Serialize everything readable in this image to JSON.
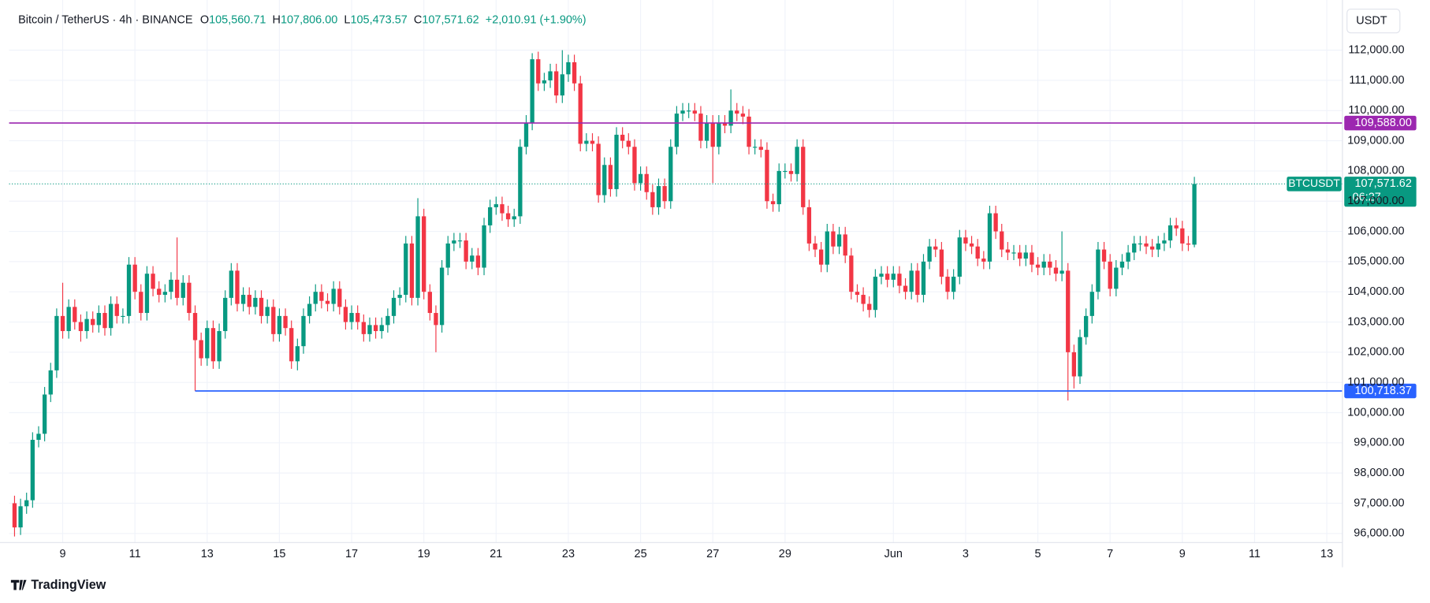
{
  "chart_data": {
    "type": "candlestick",
    "header": {
      "symbol": "Bitcoin / TetherUS · 4h · BINANCE",
      "ohlc": [
        {
          "key": "O",
          "value": "105,560.71"
        },
        {
          "key": "H",
          "value": "107,806.00"
        },
        {
          "key": "L",
          "value": "105,473.57"
        },
        {
          "key": "C",
          "value": "107,571.62"
        }
      ],
      "change": "+2,010.91 (+1.90%)"
    },
    "currency": "USDT",
    "brand": "TradingView",
    "up_color": "#089981",
    "down_color": "#f23645",
    "grid": true,
    "ylim": [
      95698,
      113419
    ],
    "xlim": [
      -0.9,
      220.6
    ],
    "yticks": [
      {
        "value": 96000,
        "label": "96,000.00"
      },
      {
        "value": 97000,
        "label": "97,000.00"
      },
      {
        "value": 98000,
        "label": "98,000.00"
      },
      {
        "value": 99000,
        "label": "99,000.00"
      },
      {
        "value": 100000,
        "label": "100,000.00"
      },
      {
        "value": 101000,
        "label": "101,000.00"
      },
      {
        "value": 102000,
        "label": "102,000.00"
      },
      {
        "value": 103000,
        "label": "103,000.00"
      },
      {
        "value": 104000,
        "label": "104,000.00"
      },
      {
        "value": 105000,
        "label": "105,000.00"
      },
      {
        "value": 106000,
        "label": "106,000.00"
      },
      {
        "value": 107000,
        "label": "107,000.00"
      },
      {
        "value": 108000,
        "label": "108,000.00"
      },
      {
        "value": 109000,
        "label": "109,000.00"
      },
      {
        "value": 110000,
        "label": "110,000.00"
      },
      {
        "value": 111000,
        "label": "111,000.00"
      },
      {
        "value": 112000,
        "label": "112,000.00"
      }
    ],
    "xticks": [
      {
        "value": 8,
        "label": "9"
      },
      {
        "value": 20,
        "label": "11"
      },
      {
        "value": 32,
        "label": "13"
      },
      {
        "value": 44,
        "label": "15"
      },
      {
        "value": 56,
        "label": "17"
      },
      {
        "value": 68,
        "label": "19"
      },
      {
        "value": 80,
        "label": "21"
      },
      {
        "value": 92,
        "label": "23"
      },
      {
        "value": 104,
        "label": "25"
      },
      {
        "value": 116,
        "label": "27"
      },
      {
        "value": 128,
        "label": "29"
      },
      {
        "value": 146,
        "label": "Jun"
      },
      {
        "value": 158,
        "label": "3"
      },
      {
        "value": 170,
        "label": "5"
      },
      {
        "value": 182,
        "label": "7"
      },
      {
        "value": 194,
        "label": "9"
      },
      {
        "value": 206,
        "label": "11"
      },
      {
        "value": 218,
        "label": "13"
      }
    ],
    "hlines": [
      {
        "value": 109588,
        "label": "109,588.00",
        "color": "#9c27b0",
        "start": null
      },
      {
        "value": 100718.37,
        "label": "100,718.37",
        "color": "#2962ff",
        "start": 30
      }
    ],
    "last_price": {
      "name": "BTCUSDT",
      "value": 107571.62,
      "label": "107,571.62",
      "countdown": "06:27"
    },
    "open": [
      97000,
      96200,
      96900,
      97100,
      99100,
      99300,
      100600,
      101400,
      103200,
      102700,
      103500,
      103000,
      102700,
      103100,
      102900,
      103300,
      102800,
      103600,
      103200,
      103200,
      104900,
      104000,
      103300,
      104600,
      104100,
      103900,
      104000,
      104400,
      103800,
      104300,
      103300,
      102400,
      101800,
      102800,
      101700,
      102700,
      103800,
      104700,
      103600,
      103900,
      103500,
      103800,
      103200,
      103500,
      102600,
      103200,
      102800,
      101700,
      102200,
      103200,
      103600,
      104000,
      103700,
      103600,
      104100,
      103500,
      103000,
      103300,
      103000,
      102600,
      102900,
      102700,
      102900,
      103200,
      103800,
      103900,
      105600,
      103800,
      106500,
      104000,
      103300,
      102900,
      104800,
      105600,
      105700,
      105700,
      105000,
      105200,
      104800,
      106200,
      106800,
      106900,
      106600,
      106400,
      106500,
      108800,
      109600,
      111700,
      110900,
      111000,
      111300,
      110500,
      111200,
      111600,
      110900,
      108900,
      109000,
      108900,
      107200,
      108200,
      107400,
      109200,
      109000,
      108800,
      107600,
      107900,
      107300,
      106800,
      107500,
      107000,
      108800,
      109900,
      110000,
      110000,
      109900,
      109000,
      109600,
      108800,
      109600,
      109500,
      110000,
      109900,
      109800,
      108800,
      108800,
      108700,
      107000,
      106900,
      108000,
      108000,
      107900,
      108800,
      106800,
      105600,
      105400,
      104900,
      106000,
      105500,
      105900,
      105200,
      104000,
      103900,
      103600,
      103400,
      104500,
      104600,
      104400,
      104600,
      104200,
      104000,
      104700,
      103900,
      105000,
      105500,
      105400,
      104500,
      104000,
      104500,
      105800,
      105600,
      105500,
      105100,
      105000,
      106600,
      106000,
      105400,
      105300,
      105300,
      105100,
      105300,
      104900,
      104800,
      105000,
      104800,
      104600,
      104700,
      102000,
      101200,
      102500,
      103200,
      104000,
      105400,
      105000,
      104100,
      104800,
      105000,
      105300,
      105600,
      105600,
      105500,
      105400,
      105600,
      105700,
      106200,
      106100,
      105600,
      105560.71
    ],
    "high": [
      97250,
      97150,
      97350,
      99350,
      99550,
      100850,
      101650,
      103450,
      104300,
      103750,
      103750,
      103250,
      103350,
      103350,
      103550,
      103550,
      103850,
      103850,
      103450,
      105150,
      105150,
      104250,
      104850,
      104850,
      104350,
      104250,
      104650,
      105800,
      104550,
      104550,
      103550,
      102650,
      103050,
      103050,
      102950,
      104050,
      104950,
      104950,
      104150,
      104150,
      104050,
      104050,
      103750,
      103750,
      103450,
      103450,
      103050,
      102450,
      103450,
      103850,
      104250,
      104250,
      103950,
      104350,
      104350,
      103750,
      103550,
      103550,
      103250,
      103150,
      103150,
      103150,
      103450,
      104050,
      104150,
      105850,
      105850,
      107100,
      106750,
      104250,
      103550,
      105050,
      105850,
      105950,
      105950,
      105950,
      105450,
      105450,
      106450,
      107050,
      107150,
      107150,
      106850,
      106750,
      109050,
      109850,
      111900,
      111950,
      111250,
      111550,
      111550,
      112000,
      111850,
      111850,
      111150,
      109250,
      109250,
      109150,
      108450,
      108450,
      109450,
      109450,
      109250,
      109050,
      108150,
      108150,
      107550,
      107750,
      107750,
      109050,
      110150,
      110250,
      110250,
      110250,
      110150,
      109850,
      109850,
      109850,
      109850,
      110700,
      110250,
      110150,
      110050,
      109050,
      109050,
      108950,
      107250,
      108250,
      108250,
      108250,
      109050,
      109050,
      107050,
      105850,
      105650,
      106250,
      106250,
      106150,
      106150,
      105450,
      104250,
      104150,
      103850,
      104750,
      104850,
      104850,
      104850,
      104850,
      104450,
      104950,
      104950,
      105250,
      105750,
      105750,
      105650,
      104750,
      104750,
      106050,
      106050,
      105850,
      105750,
      105350,
      106850,
      106850,
      106250,
      105650,
      105550,
      105550,
      105550,
      105550,
      105150,
      105250,
      105250,
      105050,
      106000,
      104950,
      102250,
      102750,
      103450,
      104250,
      105650,
      105650,
      105250,
      105050,
      105250,
      105550,
      105850,
      105850,
      105850,
      105750,
      105850,
      105950,
      106450,
      106450,
      106350,
      105850,
      107806
    ],
    "low": [
      95900,
      95950,
      96650,
      96850,
      98850,
      99050,
      100350,
      101150,
      102450,
      102450,
      102750,
      102350,
      102450,
      102650,
      102650,
      102550,
      102550,
      102950,
      102950,
      102950,
      103750,
      103050,
      103050,
      103850,
      103650,
      103650,
      103750,
      103550,
      103550,
      103050,
      100718.37,
      101550,
      101550,
      101450,
      101450,
      102450,
      103550,
      103350,
      103350,
      103250,
      103250,
      102950,
      102950,
      102350,
      102350,
      102550,
      101450,
      101400,
      101950,
      102950,
      103350,
      103450,
      103350,
      103350,
      103250,
      102750,
      102750,
      102750,
      102350,
      102350,
      102450,
      102450,
      102650,
      102950,
      103550,
      103650,
      103550,
      103550,
      103750,
      103050,
      102000,
      102650,
      104550,
      105350,
      105450,
      104750,
      104750,
      104550,
      104550,
      105950,
      106550,
      106350,
      106150,
      106150,
      106250,
      108550,
      109350,
      110650,
      110650,
      110750,
      110250,
      110250,
      110950,
      110650,
      108650,
      108650,
      108650,
      106950,
      106950,
      107150,
      107150,
      108750,
      108550,
      107350,
      107350,
      107050,
      106550,
      106550,
      106750,
      106750,
      108550,
      109650,
      109750,
      109650,
      108750,
      108750,
      107600,
      108550,
      109250,
      109250,
      109650,
      109550,
      108550,
      108550,
      108450,
      106750,
      106650,
      106650,
      107750,
      107650,
      107650,
      106550,
      105350,
      105150,
      104650,
      104650,
      105250,
      105250,
      104950,
      103750,
      103650,
      103350,
      103150,
      103150,
      104250,
      104150,
      104150,
      103950,
      103750,
      103750,
      103650,
      103650,
      104750,
      105150,
      104250,
      103750,
      103750,
      104250,
      105350,
      105250,
      104850,
      104750,
      104750,
      105750,
      105150,
      105050,
      105050,
      104850,
      104850,
      104650,
      104550,
      104550,
      104550,
      104350,
      104350,
      100400,
      100800,
      100950,
      102250,
      102950,
      103750,
      104750,
      103850,
      103850,
      104550,
      104750,
      105050,
      105350,
      105250,
      105150,
      105150,
      105350,
      105450,
      105850,
      105350,
      105350,
      105473.57
    ],
    "close": [
      96200,
      96900,
      97100,
      99100,
      99300,
      100600,
      101400,
      103200,
      102700,
      103500,
      103000,
      102700,
      103100,
      102900,
      103300,
      102800,
      103600,
      103200,
      103200,
      104900,
      104000,
      103300,
      104600,
      104100,
      103900,
      104000,
      104400,
      103800,
      104300,
      103300,
      102400,
      101800,
      102800,
      101700,
      102700,
      103800,
      104700,
      103600,
      103900,
      103500,
      103800,
      103200,
      103500,
      102600,
      103200,
      102800,
      101700,
      102200,
      103200,
      103600,
      104000,
      103700,
      103600,
      104100,
      103500,
      103000,
      103300,
      103000,
      102600,
      102900,
      102700,
      102900,
      103200,
      103800,
      103900,
      105600,
      103800,
      106500,
      104000,
      103300,
      102900,
      104800,
      105600,
      105700,
      105700,
      105000,
      105200,
      104800,
      106200,
      106800,
      106900,
      106600,
      106400,
      106500,
      108800,
      109600,
      111700,
      110900,
      111000,
      111300,
      110500,
      111200,
      111600,
      110900,
      108900,
      109000,
      108900,
      107200,
      108200,
      107400,
      109200,
      109000,
      108800,
      107600,
      107900,
      107300,
      106800,
      107500,
      107000,
      108800,
      109900,
      110000,
      110000,
      109900,
      109000,
      109600,
      108800,
      109600,
      109500,
      110000,
      109900,
      109800,
      108800,
      108800,
      108700,
      107000,
      106900,
      108000,
      108000,
      107900,
      108800,
      106800,
      105600,
      105400,
      104900,
      106000,
      105500,
      105900,
      105200,
      104000,
      103900,
      103600,
      103400,
      104500,
      104600,
      104400,
      104600,
      104200,
      104000,
      104700,
      103900,
      105000,
      105500,
      105400,
      104500,
      104000,
      104500,
      105800,
      105600,
      105500,
      105100,
      105000,
      106600,
      106000,
      105400,
      105300,
      105300,
      105100,
      105300,
      104900,
      104800,
      105000,
      104800,
      104600,
      104700,
      102000,
      101200,
      102500,
      103200,
      104000,
      105400,
      105000,
      104100,
      104800,
      105000,
      105300,
      105600,
      105600,
      105500,
      105400,
      105600,
      105700,
      106200,
      106100,
      105600,
      105560.71,
      107571.62
    ]
  }
}
